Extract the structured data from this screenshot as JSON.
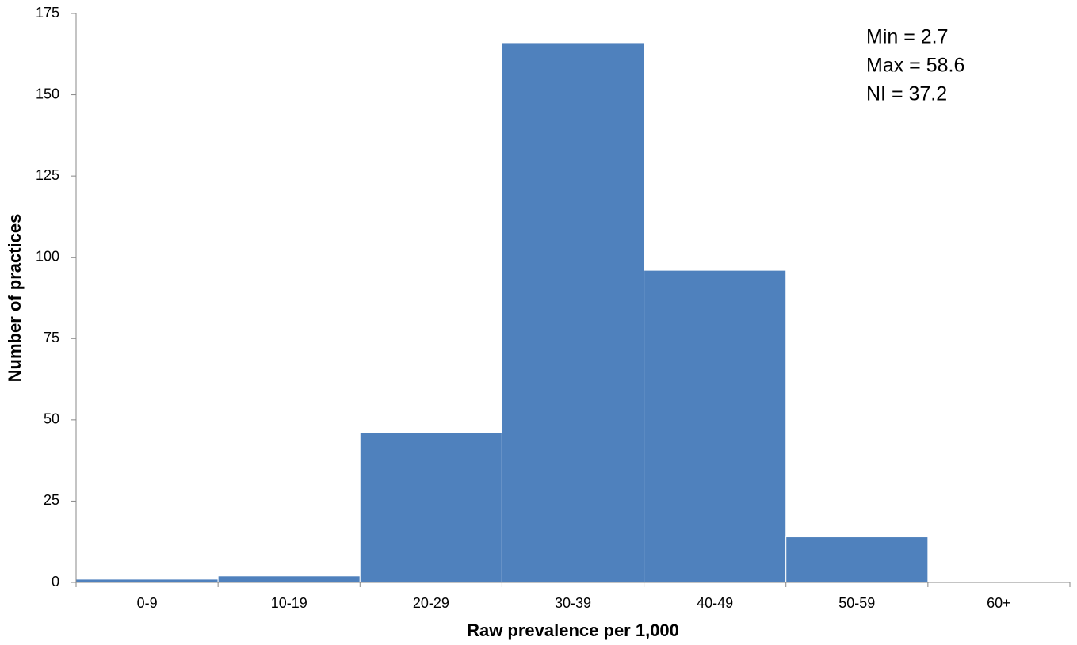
{
  "chart_data": {
    "type": "bar",
    "x_label": "Raw prevalence per 1,000",
    "y_label": "Number of practices",
    "categories": [
      "0-9",
      "10-19",
      "20-29",
      "30-39",
      "40-49",
      "50-59",
      "60+"
    ],
    "values": [
      1,
      2,
      46,
      166,
      96,
      14,
      0
    ],
    "color": "#4f81bd",
    "ylim": [
      0,
      175
    ],
    "yticks": [
      0,
      25,
      50,
      75,
      100,
      125,
      150,
      175
    ],
    "grid": false,
    "annotations": [
      "Min = 2.7",
      "Max = 58.6",
      "NI = 37.2"
    ]
  }
}
